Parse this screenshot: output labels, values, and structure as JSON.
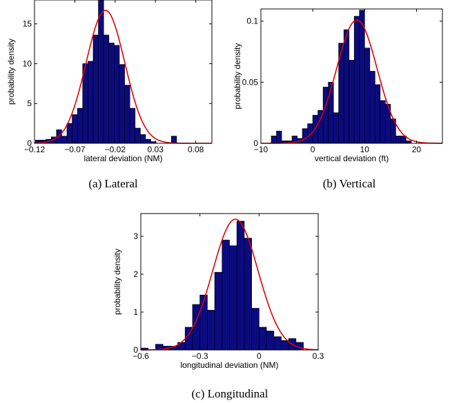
{
  "colors": {
    "bar_fill": "#0b0b80",
    "bar_stroke": "#000000",
    "fit_line": "#e00000",
    "axes": "#000000"
  },
  "chart_data": [
    {
      "type": "bar",
      "caption": "(a)  Lateral",
      "xlabel": "lateral deviation (NM)",
      "ylabel": "probability density",
      "xlim": [
        -0.12,
        0.1
      ],
      "ylim": [
        0,
        18
      ],
      "xticks": [
        -0.12,
        -0.07,
        -0.02,
        0.03,
        0.08
      ],
      "xtick_labels": [
        "−0.12",
        "−0.07",
        "−0.02",
        "0.03",
        "0.08"
      ],
      "yticks": [
        0,
        5,
        10,
        15
      ],
      "ytick_labels": [
        "0",
        "5",
        "10",
        "15"
      ],
      "bin_width": 0.0065,
      "bins": [
        {
          "x": -0.1155,
          "y": 0.4
        },
        {
          "x": -0.109,
          "y": 0.4
        },
        {
          "x": -0.1025,
          "y": 0.5
        },
        {
          "x": -0.096,
          "y": 0.8
        },
        {
          "x": -0.0895,
          "y": 1.7
        },
        {
          "x": -0.083,
          "y": 0.9
        },
        {
          "x": -0.0765,
          "y": 2.5
        },
        {
          "x": -0.07,
          "y": 3.6
        },
        {
          "x": -0.0635,
          "y": 4.4
        },
        {
          "x": -0.057,
          "y": 10.0
        },
        {
          "x": -0.0505,
          "y": 10.3
        },
        {
          "x": -0.044,
          "y": 13.6
        },
        {
          "x": -0.0375,
          "y": 18.0
        },
        {
          "x": -0.031,
          "y": 13.6
        },
        {
          "x": -0.0245,
          "y": 12.6
        },
        {
          "x": -0.018,
          "y": 12.3
        },
        {
          "x": -0.0115,
          "y": 9.9
        },
        {
          "x": -0.005,
          "y": 7.3
        },
        {
          "x": 0.0015,
          "y": 4.4
        },
        {
          "x": 0.008,
          "y": 1.9
        },
        {
          "x": 0.0145,
          "y": 1.1
        },
        {
          "x": 0.021,
          "y": 0.5
        },
        {
          "x": 0.0275,
          "y": 0.2
        },
        {
          "x": 0.053,
          "y": 0.9
        }
      ],
      "fit": {
        "kind": "normal",
        "mu": -0.032,
        "sigma": 0.024,
        "peak": 16.7
      }
    },
    {
      "type": "bar",
      "caption": "(b)  Vertical",
      "xlabel": "vertical deviation (ft)",
      "ylabel": "probability density",
      "xlim": [
        -10,
        25
      ],
      "ylim": [
        0,
        0.11
      ],
      "xticks": [
        -10,
        0,
        10,
        20
      ],
      "xtick_labels": [
        "−10",
        "0",
        "10",
        "20"
      ],
      "yticks": [
        0,
        0.05,
        0.1
      ],
      "ytick_labels": [
        "0",
        "0.05",
        "0.1"
      ],
      "bin_width": 1,
      "bins": [
        {
          "x": -7.5,
          "y": 0.006
        },
        {
          "x": -6.5,
          "y": 0.01
        },
        {
          "x": -5.5,
          "y": 0.002
        },
        {
          "x": -4.5,
          "y": 0.002
        },
        {
          "x": -3.5,
          "y": 0.006
        },
        {
          "x": -2.5,
          "y": 0.004
        },
        {
          "x": -1.5,
          "y": 0.012
        },
        {
          "x": -0.5,
          "y": 0.016
        },
        {
          "x": 0.5,
          "y": 0.023
        },
        {
          "x": 1.5,
          "y": 0.027
        },
        {
          "x": 2.5,
          "y": 0.046
        },
        {
          "x": 3.5,
          "y": 0.05
        },
        {
          "x": 4.5,
          "y": 0.025
        },
        {
          "x": 5.5,
          "y": 0.082
        },
        {
          "x": 6.5,
          "y": 0.093
        },
        {
          "x": 7.5,
          "y": 0.068
        },
        {
          "x": 8.5,
          "y": 0.104
        },
        {
          "x": 9.5,
          "y": 0.109
        },
        {
          "x": 10.5,
          "y": 0.078
        },
        {
          "x": 11.5,
          "y": 0.059
        },
        {
          "x": 12.5,
          "y": 0.048
        },
        {
          "x": 13.5,
          "y": 0.035
        },
        {
          "x": 14.5,
          "y": 0.032
        },
        {
          "x": 15.5,
          "y": 0.02
        },
        {
          "x": 16.5,
          "y": 0.006
        },
        {
          "x": 17.5,
          "y": 0.006
        },
        {
          "x": 18.5,
          "y": 0.002
        }
      ],
      "fit": {
        "kind": "normal",
        "mu": 8.5,
        "sigma": 3.9,
        "peak": 0.101
      }
    },
    {
      "type": "bar",
      "caption": "(c)  Longitudinal",
      "xlabel": "longitudinal deviation (NM)",
      "ylabel": "probability density",
      "xlim": [
        -0.6,
        0.3
      ],
      "ylim": [
        0,
        3.6
      ],
      "xticks": [
        -0.6,
        -0.3,
        0,
        0.3
      ],
      "xtick_labels": [
        "−0.6",
        "−0.3",
        "0",
        "0.3"
      ],
      "yticks": [
        0,
        1,
        2,
        3
      ],
      "ytick_labels": [
        "0",
        "1",
        "2",
        "3"
      ],
      "bin_width": 0.0375,
      "bins": [
        {
          "x": -0.58125,
          "y": 0.05
        },
        {
          "x": -0.54375,
          "y": 0.0
        },
        {
          "x": -0.50625,
          "y": 0.15
        },
        {
          "x": -0.46875,
          "y": 0.1
        },
        {
          "x": -0.43125,
          "y": 0.1
        },
        {
          "x": -0.39375,
          "y": 0.2
        },
        {
          "x": -0.35625,
          "y": 0.6
        },
        {
          "x": -0.31875,
          "y": 1.2
        },
        {
          "x": -0.28125,
          "y": 1.45
        },
        {
          "x": -0.24375,
          "y": 1.05
        },
        {
          "x": -0.20625,
          "y": 2.05
        },
        {
          "x": -0.16875,
          "y": 2.9
        },
        {
          "x": -0.13125,
          "y": 2.75
        },
        {
          "x": -0.09375,
          "y": 3.4
        },
        {
          "x": -0.05625,
          "y": 2.95
        },
        {
          "x": -0.01875,
          "y": 1.1
        },
        {
          "x": 0.01875,
          "y": 0.6
        },
        {
          "x": 0.05625,
          "y": 0.5
        },
        {
          "x": 0.09375,
          "y": 0.35
        },
        {
          "x": 0.13125,
          "y": 0.25
        },
        {
          "x": 0.16875,
          "y": 0.3
        },
        {
          "x": 0.20625,
          "y": 0.2
        }
      ],
      "fit": {
        "kind": "normal",
        "mu": -0.12,
        "sigma": 0.115,
        "peak": 3.45
      }
    }
  ]
}
